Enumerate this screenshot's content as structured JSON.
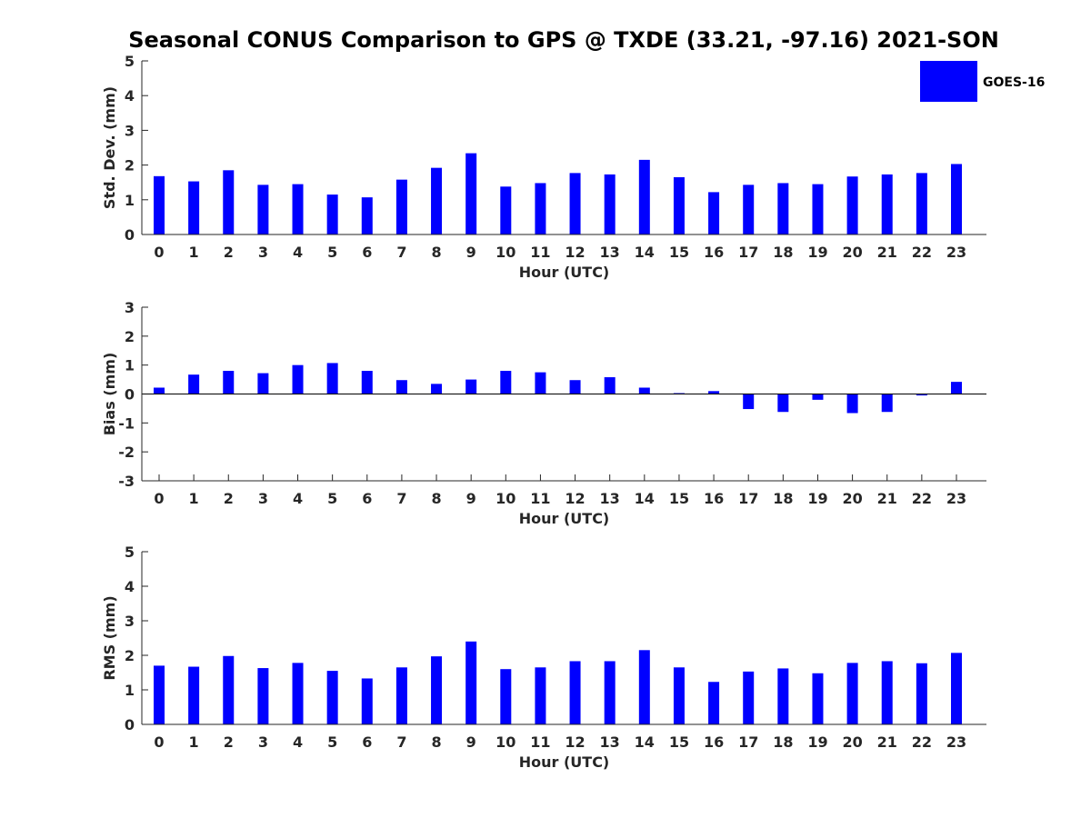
{
  "figure": {
    "title": "Seasonal CONUS Comparison to GPS @ TXDE (33.21, -97.16) 2021-SON"
  },
  "legend": {
    "label": "GOES-16",
    "color": "#0000ff",
    "placement": "top-right"
  },
  "chart_data": [
    {
      "type": "bar",
      "xlabel": "Hour (UTC)",
      "ylabel": "Std. Dev. (mm)",
      "ylim": [
        0,
        5
      ],
      "yticks": [
        0,
        1,
        2,
        3,
        4,
        5
      ],
      "categories": [
        "0",
        "1",
        "2",
        "3",
        "4",
        "5",
        "6",
        "7",
        "8",
        "9",
        "10",
        "11",
        "12",
        "13",
        "14",
        "15",
        "16",
        "17",
        "18",
        "19",
        "20",
        "21",
        "22",
        "23"
      ],
      "series": [
        {
          "name": "GOES-16",
          "color": "#0000ff",
          "values": [
            1.68,
            1.53,
            1.85,
            1.43,
            1.45,
            1.15,
            1.07,
            1.58,
            1.92,
            2.34,
            1.38,
            1.48,
            1.77,
            1.73,
            2.15,
            1.65,
            1.22,
            1.43,
            1.48,
            1.45,
            1.67,
            1.73,
            1.77,
            2.03
          ]
        }
      ],
      "legend": true
    },
    {
      "type": "bar",
      "xlabel": "Hour (UTC)",
      "ylabel": "Bias (mm)",
      "ylim": [
        -3,
        3
      ],
      "yticks": [
        -3,
        -2,
        -1,
        0,
        1,
        2,
        3
      ],
      "categories": [
        "0",
        "1",
        "2",
        "3",
        "4",
        "5",
        "6",
        "7",
        "8",
        "9",
        "10",
        "11",
        "12",
        "13",
        "14",
        "15",
        "16",
        "17",
        "18",
        "19",
        "20",
        "21",
        "22",
        "23"
      ],
      "series": [
        {
          "name": "GOES-16",
          "color": "#0000ff",
          "values": [
            0.22,
            0.67,
            0.8,
            0.72,
            1.0,
            1.07,
            0.8,
            0.48,
            0.35,
            0.5,
            0.8,
            0.75,
            0.48,
            0.58,
            0.22,
            0.03,
            0.1,
            -0.52,
            -0.62,
            -0.2,
            -0.66,
            -0.62,
            -0.05,
            0.42
          ]
        }
      ],
      "legend": false
    },
    {
      "type": "bar",
      "xlabel": "Hour (UTC)",
      "ylabel": "RMS (mm)",
      "ylim": [
        0,
        5
      ],
      "yticks": [
        0,
        1,
        2,
        3,
        4,
        5
      ],
      "categories": [
        "0",
        "1",
        "2",
        "3",
        "4",
        "5",
        "6",
        "7",
        "8",
        "9",
        "10",
        "11",
        "12",
        "13",
        "14",
        "15",
        "16",
        "17",
        "18",
        "19",
        "20",
        "21",
        "22",
        "23"
      ],
      "series": [
        {
          "name": "GOES-16",
          "color": "#0000ff",
          "values": [
            1.7,
            1.67,
            1.98,
            1.63,
            1.78,
            1.55,
            1.33,
            1.65,
            1.97,
            2.4,
            1.6,
            1.65,
            1.83,
            1.83,
            2.15,
            1.65,
            1.23,
            1.53,
            1.62,
            1.48,
            1.78,
            1.83,
            1.77,
            2.07
          ]
        }
      ],
      "legend": false
    }
  ]
}
